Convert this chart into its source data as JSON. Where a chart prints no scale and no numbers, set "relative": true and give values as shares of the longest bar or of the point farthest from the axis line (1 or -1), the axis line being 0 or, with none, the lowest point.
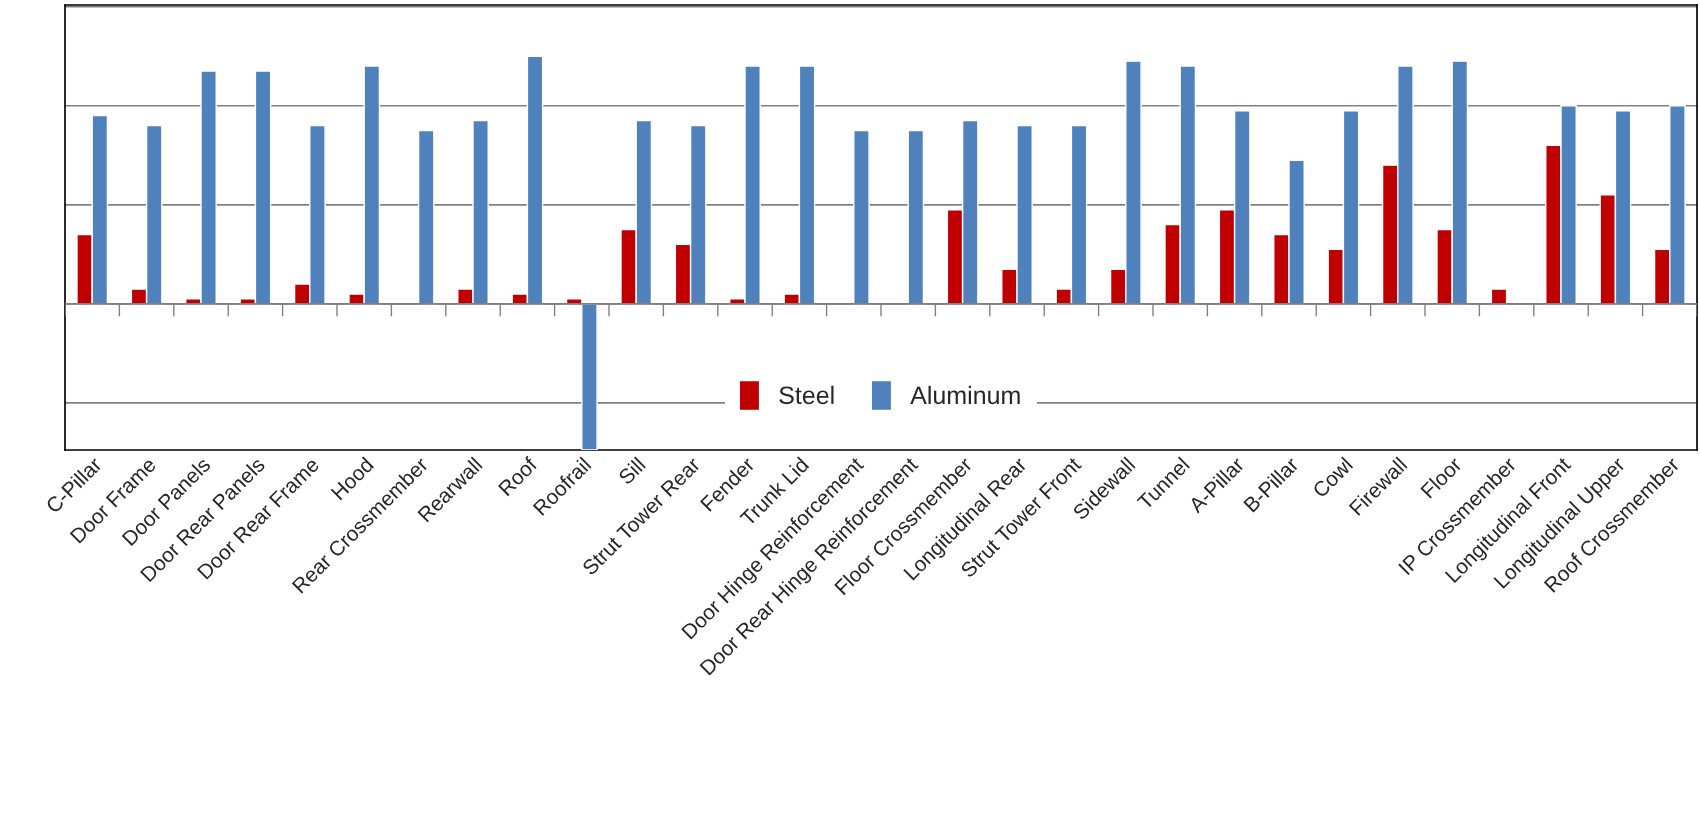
{
  "chart_data": {
    "type": "bar",
    "relative": true,
    "grid": "y",
    "legend": "bottom",
    "categories": [
      "C-Pillar",
      "Door Frame",
      "Door Panels",
      "Door Rear Panels",
      "Door Rear Frame",
      "Hood",
      "Rear Crossmember",
      "Rearwall",
      "Roof",
      "Roofrail",
      "Sill",
      "Strut Tower Rear",
      "Fender",
      "Trunk Lid",
      "Door Hinge Reinforcement",
      "Door Rear Hinge Reinforcement",
      "Floor Crossmember",
      "Longitudinal Rear",
      "Strut Tower Front",
      "Sidewall",
      "Tunnel",
      "A-Pillar",
      "B-Pillar",
      "Cowl",
      "Firewall",
      "Floor",
      "IP Crossmember",
      "Longitudinal Front",
      "Longitudinal Upper",
      "Roof Crossmember"
    ],
    "series": [
      {
        "name": "Steel",
        "color": "#c00000",
        "values": [
          0.28,
          0.06,
          0.02,
          0.02,
          0.08,
          0.04,
          null,
          0.06,
          0.04,
          0.02,
          0.3,
          0.24,
          0.02,
          0.04,
          null,
          null,
          0.38,
          0.14,
          0.06,
          0.14,
          0.32,
          0.38,
          0.28,
          0.22,
          0.56,
          0.3,
          0.06,
          0.64,
          0.44,
          0.22
        ]
      },
      {
        "name": "Aluminum",
        "color": "#4f81bd",
        "values": [
          0.76,
          0.72,
          0.94,
          0.94,
          0.72,
          0.96,
          0.7,
          0.74,
          1.0,
          -0.59,
          0.74,
          0.72,
          0.96,
          0.96,
          0.7,
          0.7,
          0.74,
          0.72,
          0.72,
          0.98,
          0.96,
          0.78,
          0.58,
          0.78,
          0.96,
          0.98,
          null,
          0.8,
          0.78,
          0.8
        ]
      }
    ]
  }
}
